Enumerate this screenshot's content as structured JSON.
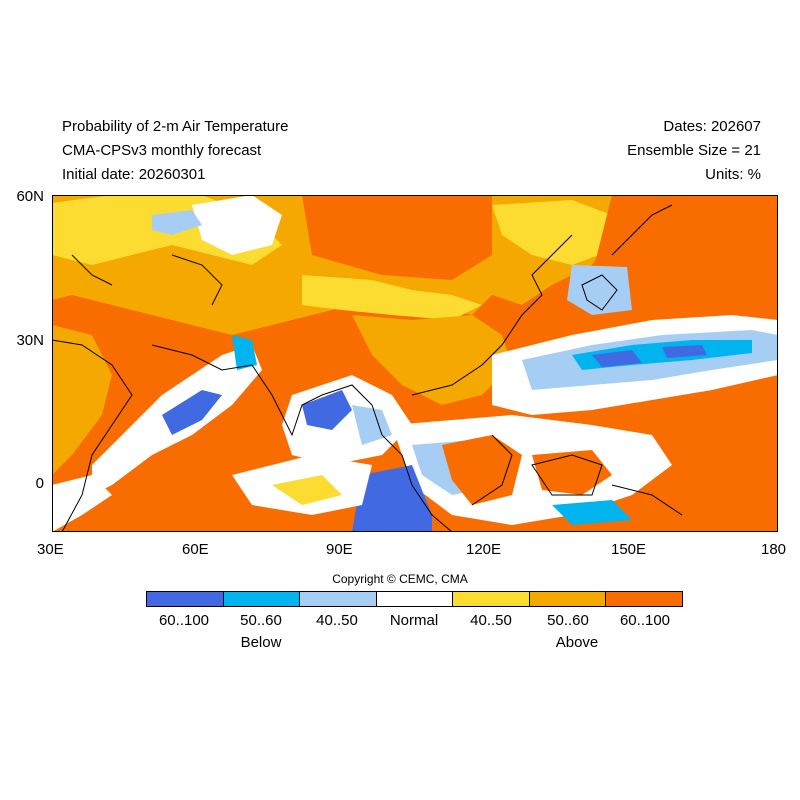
{
  "header": {
    "title_line1": "Probability of 2-m Air Temperature",
    "title_line2": "CMA-CPSv3 monthly forecast",
    "title_line3": "Initial date: 20260301",
    "dates": "Dates: 202607",
    "ensemble": "Ensemble Size = 21",
    "units": "Units: %"
  },
  "map": {
    "lat_ticks": [
      "60N",
      "30N",
      "0"
    ],
    "lon_ticks": [
      "30E",
      "60E",
      "90E",
      "120E",
      "150E",
      "180"
    ],
    "extent": {
      "lon": [
        30,
        180
      ],
      "lat": [
        -10,
        60
      ]
    }
  },
  "copyright": "Copyright © CEMC, CMA",
  "legend": {
    "categories": [
      {
        "label": "60..100",
        "color": "#4169e1"
      },
      {
        "label": "50..60",
        "color": "#00b4f0"
      },
      {
        "label": "40..50",
        "color": "#a6cef5"
      },
      {
        "label": "Normal",
        "color": "#ffffff"
      },
      {
        "label": "40..50",
        "color": "#fddc32"
      },
      {
        "label": "50..60",
        "color": "#f5a800"
      },
      {
        "label": "60..100",
        "color": "#f96d00"
      }
    ],
    "below_label": "Below",
    "above_label": "Above"
  }
}
